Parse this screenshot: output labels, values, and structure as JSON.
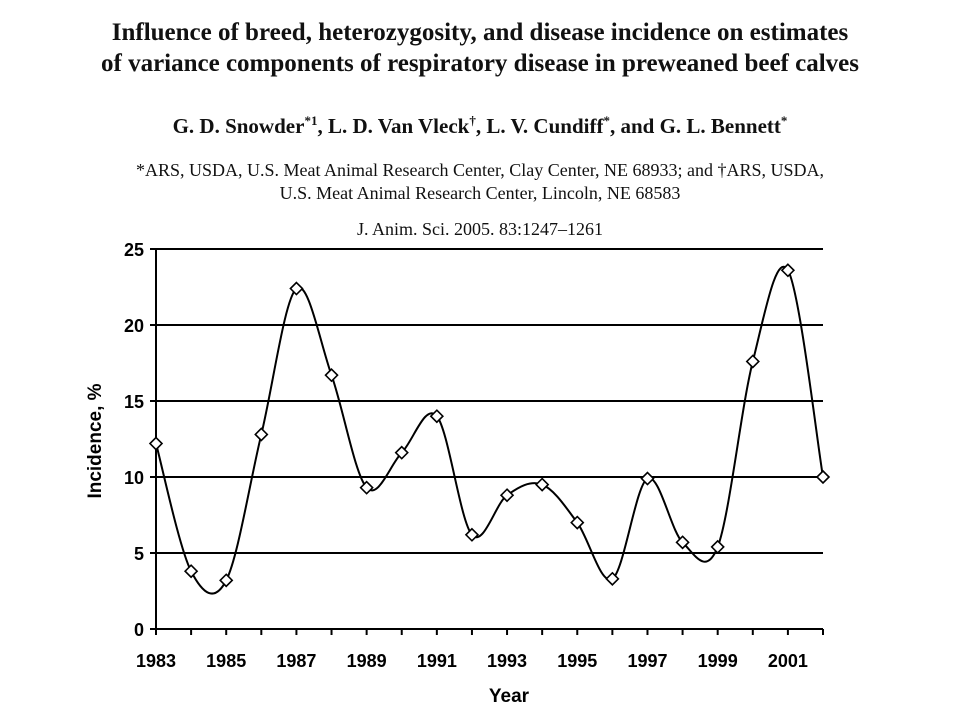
{
  "paper": {
    "title_line1": "Influence of breed, heterozygosity, and disease incidence on estimates",
    "title_line2": "of variance components of respiratory disease in preweaned beef calves",
    "authors_prefix": "G. D. Snowder",
    "authors_sup1": "*1",
    "authors_mid1": ", L. D. Van Vleck",
    "authors_sup2": "†",
    "authors_mid2": ", L. V. Cundiff",
    "authors_sup3": "*",
    "authors_mid3": ", and G. L. Bennett",
    "authors_sup4": "*",
    "affiliation_line1": "*ARS, USDA, U.S. Meat Animal Research Center, Clay Center, NE 68933; and †ARS, USDA,",
    "affiliation_line2": "U.S. Meat Animal Research Center, Lincoln, NE 68583",
    "citation": "J. Anim. Sci. 2005. 83:1247–1261"
  },
  "chart_data": {
    "type": "line",
    "title": "",
    "xlabel": "Year",
    "ylabel": "Incidence, %",
    "x": [
      1983,
      1984,
      1985,
      1986,
      1987,
      1988,
      1989,
      1990,
      1991,
      1992,
      1993,
      1994,
      1995,
      1996,
      1997,
      1998,
      1999,
      2000,
      2001,
      2002
    ],
    "series": [
      {
        "values": [
          12.2,
          3.8,
          3.2,
          12.8,
          22.4,
          16.7,
          9.3,
          11.6,
          14.0,
          6.2,
          8.8,
          9.5,
          7.0,
          3.3,
          9.9,
          5.7,
          5.4,
          17.6,
          23.6,
          10.0
        ]
      }
    ],
    "xlim": [
      1983,
      2002
    ],
    "ylim": [
      0,
      25
    ],
    "yticks": [
      "0",
      "5",
      "10",
      "15",
      "20",
      "25"
    ],
    "xticks": [
      "1983",
      "1985",
      "1987",
      "1989",
      "1991",
      "1993",
      "1995",
      "1997",
      "1999",
      "2001"
    ],
    "grid": true,
    "marker": "diamond",
    "smooth": true,
    "colors": {
      "line": "#000000",
      "grid": "#000000",
      "marker_fill": "#ffffff"
    }
  }
}
